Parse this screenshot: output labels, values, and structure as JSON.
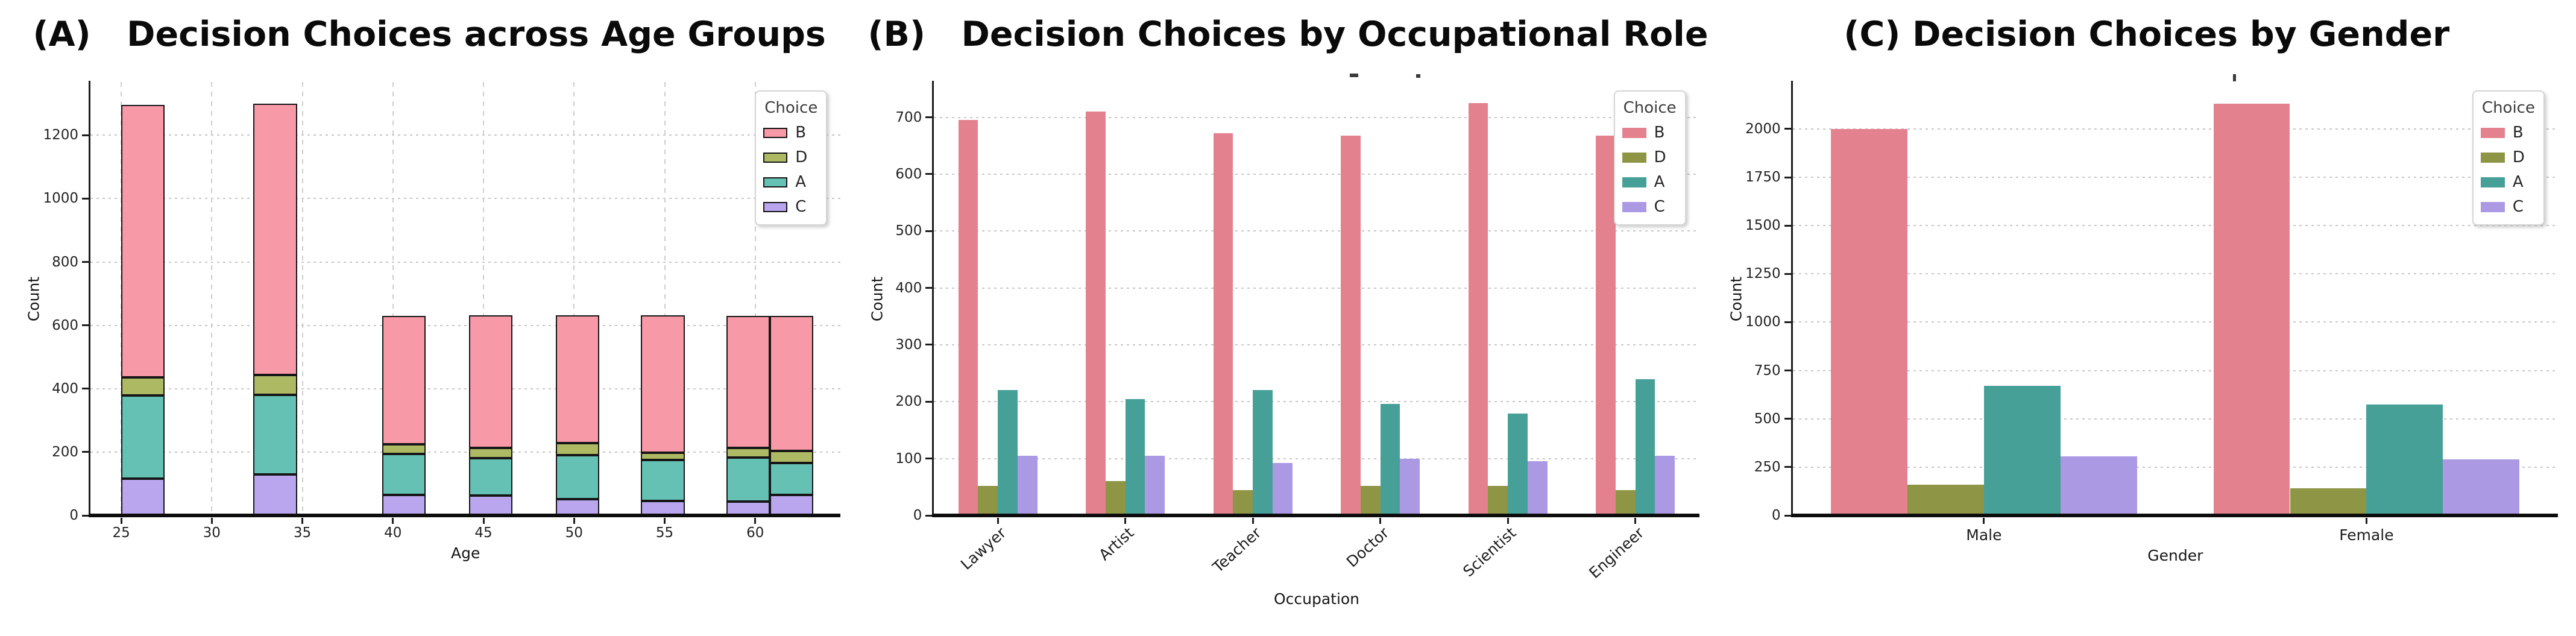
{
  "style": {
    "background": "#ffffff",
    "grid_color": "#c7c7c7",
    "axis_color": "#0d0d0d",
    "palette_light": {
      "B": "#F899A8",
      "D": "#AEB963",
      "A": "#65C1B4",
      "C": "#B9A6EF"
    },
    "palette_solid": {
      "B": "#E4818F",
      "D": "#8E9545",
      "A": "#46A097",
      "C": "#AC99E4"
    }
  },
  "chart_data": [
    {
      "key": "A",
      "type": "stacked-bar",
      "title": "(A)   Decision Choices across Age Groups",
      "xlabel": "Age",
      "ylabel": "Count",
      "legend": {
        "title": "Choice",
        "entries": [
          "B",
          "D",
          "A",
          "C"
        ],
        "patch_border": true,
        "position": "upper right"
      },
      "colors": {
        "B": "#F899A8",
        "D": "#AEB963",
        "A": "#65C1B4",
        "C": "#B9A6EF"
      },
      "edge_color": "#161616",
      "grid": {
        "horizontal": true,
        "vertical": true
      },
      "x_ticks": [
        25,
        30,
        35,
        40,
        45,
        50,
        55,
        60
      ],
      "x_min": 23.3,
      "x_max": 64.7,
      "y_ticks": [
        0,
        200,
        400,
        600,
        800,
        1000,
        1200
      ],
      "y_max": 1368,
      "bar_width": 2.4,
      "stack_order": [
        "C",
        "A",
        "D",
        "B"
      ],
      "bars": [
        {
          "x": 26.2,
          "C": 116,
          "A": 263,
          "D": 56,
          "B": 860
        },
        {
          "x": 33.5,
          "C": 130,
          "A": 251,
          "D": 62,
          "B": 857
        },
        {
          "x": 40.6,
          "C": 65,
          "A": 129,
          "D": 31,
          "B": 405
        },
        {
          "x": 45.4,
          "C": 62,
          "A": 119,
          "D": 33,
          "B": 418
        },
        {
          "x": 50.2,
          "C": 51,
          "A": 139,
          "D": 39,
          "B": 403
        },
        {
          "x": 54.9,
          "C": 46,
          "A": 129,
          "D": 22,
          "B": 435
        },
        {
          "x": 59.6,
          "C": 44,
          "A": 138,
          "D": 31,
          "B": 417
        },
        {
          "x": 62.0,
          "C": 65,
          "A": 100,
          "D": 38,
          "B": 427
        }
      ]
    },
    {
      "key": "B",
      "type": "grouped-bar",
      "title": "(B)   Decision Choices by Occupational Role",
      "xlabel": "Occupation",
      "ylabel": "Count",
      "legend": {
        "title": "Choice",
        "entries": [
          "B",
          "D",
          "A",
          "C"
        ],
        "patch_border": false,
        "position": "upper right"
      },
      "colors": {
        "B": "#E4818F",
        "D": "#8E9545",
        "A": "#46A097",
        "C": "#AC99E4"
      },
      "grid": {
        "horizontal": true,
        "vertical": false
      },
      "categories": [
        "Lawyer",
        "Artist",
        "Teacher",
        "Doctor",
        "Scientist",
        "Engineer"
      ],
      "rotate_x_labels": true,
      "series_order": [
        "B",
        "D",
        "A",
        "C"
      ],
      "series": {
        "B": [
          695,
          710,
          672,
          668,
          725,
          668
        ],
        "D": [
          52,
          60,
          45,
          52,
          52,
          45
        ],
        "A": [
          220,
          205,
          220,
          196,
          179,
          240
        ],
        "C": [
          105,
          105,
          92,
          100,
          95,
          105
        ]
      },
      "y_ticks": [
        0,
        100,
        200,
        300,
        400,
        500,
        600,
        700
      ],
      "y_max": 762,
      "bar_frac": 0.155,
      "clipped_marks": [
        {
          "x": 690,
          "y": -14,
          "w": 14,
          "h": 6
        },
        {
          "x": 800,
          "y": -13,
          "w": 7,
          "h": 6
        }
      ]
    },
    {
      "key": "C",
      "type": "grouped-bar",
      "title": "(C) Decision Choices by Gender",
      "xlabel": "Gender",
      "ylabel": "Count",
      "legend": {
        "title": "Choice",
        "entries": [
          "B",
          "D",
          "A",
          "C"
        ],
        "patch_border": false,
        "position": "upper right"
      },
      "colors": {
        "B": "#E4818F",
        "D": "#8E9545",
        "A": "#46A097",
        "C": "#AC99E4"
      },
      "grid": {
        "horizontal": true,
        "vertical": false
      },
      "categories": [
        "Male",
        "Female"
      ],
      "rotate_x_labels": false,
      "series_order": [
        "B",
        "D",
        "A",
        "C"
      ],
      "series": {
        "B": [
          2000,
          2130
        ],
        "D": [
          160,
          140
        ],
        "A": [
          670,
          575
        ],
        "C": [
          305,
          290
        ]
      },
      "y_ticks": [
        0,
        250,
        500,
        750,
        1000,
        1250,
        1500,
        1750,
        2000
      ],
      "y_max": 2243,
      "bar_frac": 0.2,
      "clipped_marks": [
        {
          "x": 730,
          "y": -13,
          "w": 5,
          "h": 12
        }
      ]
    }
  ]
}
